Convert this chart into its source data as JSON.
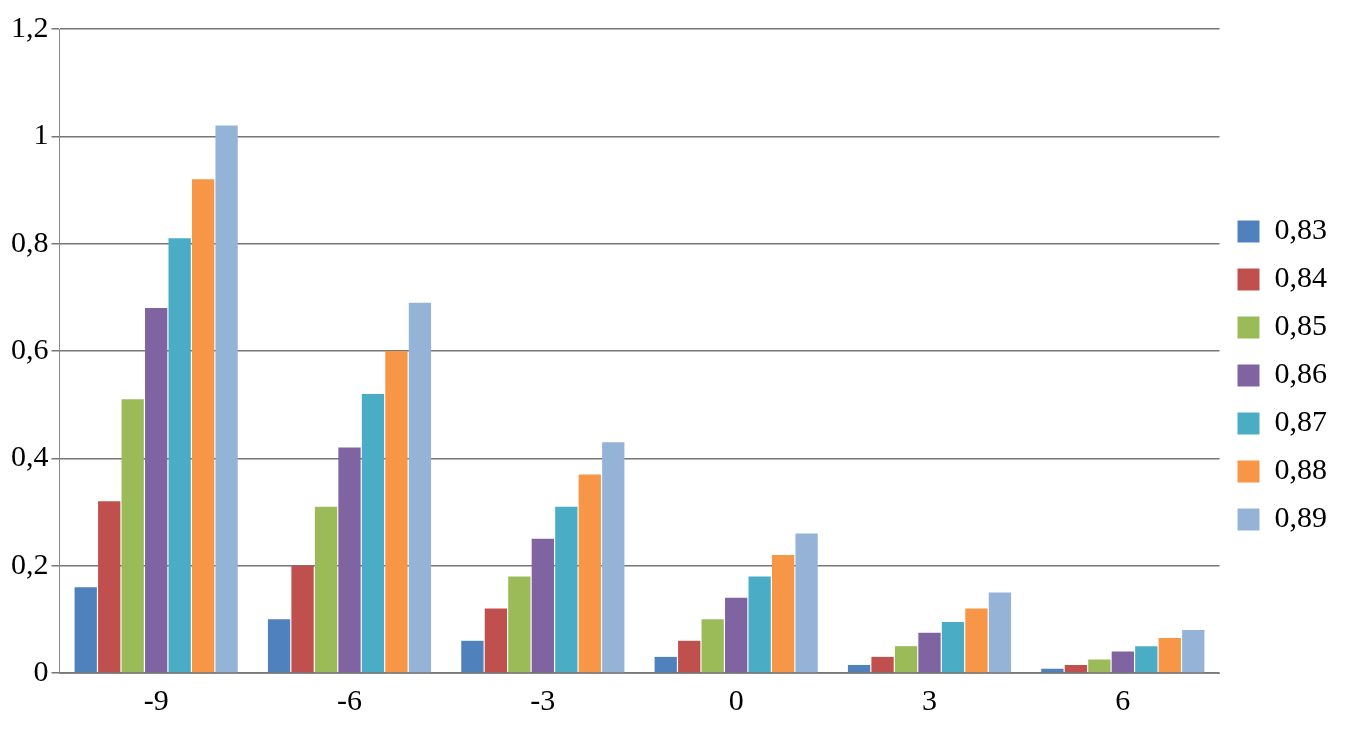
{
  "chart_data": {
    "type": "bar",
    "categories": [
      "-9",
      "-6",
      "-3",
      "0",
      "3",
      "6"
    ],
    "series": [
      {
        "name": "0,83",
        "color": "#4f81bd",
        "values": [
          0.16,
          0.1,
          0.06,
          0.03,
          0.015,
          0.008
        ]
      },
      {
        "name": "0,84",
        "color": "#c0504d",
        "values": [
          0.32,
          0.2,
          0.12,
          0.06,
          0.03,
          0.015
        ]
      },
      {
        "name": "0,85",
        "color": "#9bbb59",
        "values": [
          0.51,
          0.31,
          0.18,
          0.1,
          0.05,
          0.025
        ]
      },
      {
        "name": "0,86",
        "color": "#8064a2",
        "values": [
          0.68,
          0.42,
          0.25,
          0.14,
          0.075,
          0.04
        ]
      },
      {
        "name": "0,87",
        "color": "#4bacc6",
        "values": [
          0.81,
          0.52,
          0.31,
          0.18,
          0.095,
          0.05
        ]
      },
      {
        "name": "0,88",
        "color": "#f79646",
        "values": [
          0.92,
          0.6,
          0.37,
          0.22,
          0.12,
          0.065
        ]
      },
      {
        "name": "0,89",
        "color": "#95b3d7",
        "values": [
          1.02,
          0.69,
          0.43,
          0.26,
          0.15,
          0.08
        ]
      }
    ],
    "ylim": [
      0,
      1.2
    ],
    "yticks": [
      {
        "value": 0,
        "label": "0"
      },
      {
        "value": 0.2,
        "label": "0,2"
      },
      {
        "value": 0.4,
        "label": "0,4"
      },
      {
        "value": 0.6,
        "label": "0,6"
      },
      {
        "value": 0.8,
        "label": "0,8"
      },
      {
        "value": 1,
        "label": "1"
      },
      {
        "value": 1.2,
        "label": "1,2"
      }
    ],
    "grid": "y",
    "legend": "right"
  }
}
